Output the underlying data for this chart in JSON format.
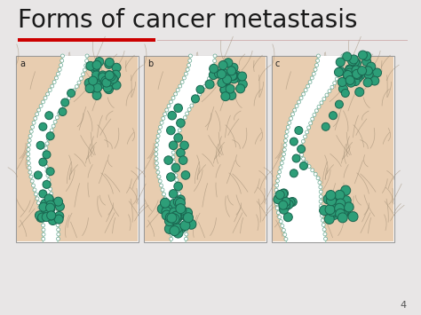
{
  "title": "Forms of cancer metastasis",
  "title_fontsize": 20,
  "title_color": "#1a1a1a",
  "title_font": "DejaVu Sans",
  "slide_bg": "#e8e6e6",
  "red_bar_color": "#cc0000",
  "pink_line_color": "#c8a0a0",
  "page_number": "4",
  "panel_labels": [
    "a",
    "b",
    "c"
  ],
  "panel_bg": "#ffffff",
  "panel_border": "#999999",
  "skin_color": "#e8cdb0",
  "skin_color2": "#dfc4a8",
  "vessel_wall_color": "#8cc8b0",
  "vessel_wall_dot": "#6aaa94",
  "cell_fill": "#2d9e78",
  "cell_edge": "#1a6650",
  "tissue_line_color": "#b8a080",
  "tissue_line_color2": "#9a8870"
}
